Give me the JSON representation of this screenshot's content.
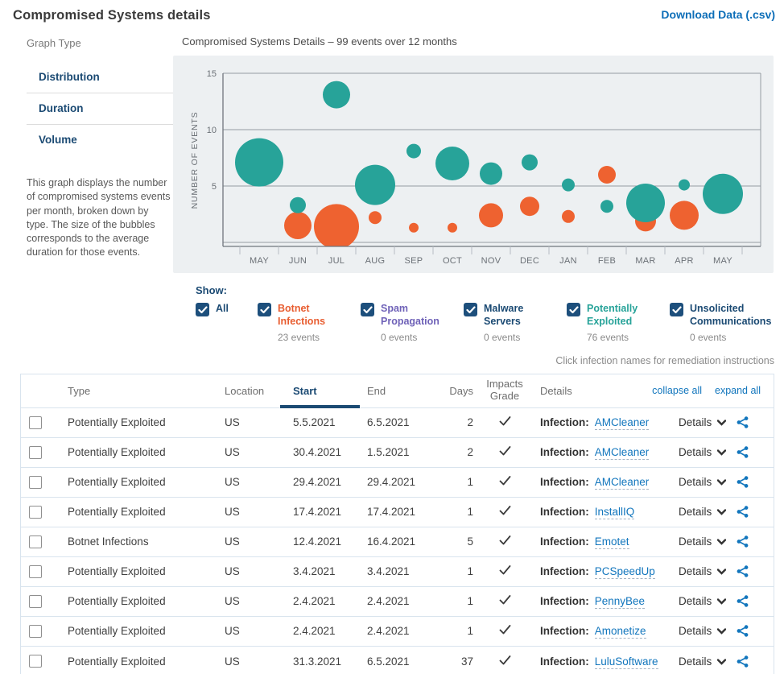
{
  "page": {
    "title": "Compromised Systems details",
    "download_label": "Download Data (.csv)"
  },
  "sidebar": {
    "section_label": "Graph Type",
    "items": [
      "Distribution",
      "Duration",
      "Volume"
    ],
    "description": "This graph displays the number of compromised systems events per month, broken down by type. The size of the bubbles corresponds to the average duration for those events."
  },
  "chart_data": {
    "type": "bubble",
    "title": "Compromised Systems Details – 99 events over 12 months",
    "ylabel": "NUMBER OF EVENTS",
    "ylim": [
      0,
      15
    ],
    "yticks": [
      5,
      10,
      15
    ],
    "grid": true,
    "months": [
      "MAY",
      "JUN",
      "JUL",
      "AUG",
      "SEP",
      "OCT",
      "NOV",
      "DEC",
      "JAN",
      "FEB",
      "MAR",
      "APR",
      "MAY"
    ],
    "series": [
      {
        "name": "Botnet Infections",
        "color": "#ee6230",
        "points": [
          {
            "m": 1,
            "events": 1.5,
            "size": 17
          },
          {
            "m": 2,
            "events": 1.4,
            "size": 28
          },
          {
            "m": 3,
            "events": 2.2,
            "size": 8
          },
          {
            "m": 4,
            "events": 1.3,
            "size": 6
          },
          {
            "m": 5,
            "events": 1.3,
            "size": 6
          },
          {
            "m": 6,
            "events": 2.4,
            "size": 15
          },
          {
            "m": 7,
            "events": 3.2,
            "size": 12
          },
          {
            "m": 8,
            "events": 2.3,
            "size": 8
          },
          {
            "m": 9,
            "events": 6.0,
            "size": 11
          },
          {
            "m": 10,
            "events": 1.9,
            "size": 13
          },
          {
            "m": 11,
            "events": 2.4,
            "size": 18
          }
        ]
      },
      {
        "name": "Potentially Exploited",
        "color": "#27a399",
        "points": [
          {
            "m": 0,
            "events": 7.1,
            "size": 30
          },
          {
            "m": 1,
            "events": 3.3,
            "size": 10
          },
          {
            "m": 2,
            "events": 13.1,
            "size": 17
          },
          {
            "m": 3,
            "events": 5.1,
            "size": 25
          },
          {
            "m": 4,
            "events": 8.1,
            "size": 9
          },
          {
            "m": 5,
            "events": 7.0,
            "size": 21
          },
          {
            "m": 6,
            "events": 6.1,
            "size": 14
          },
          {
            "m": 7,
            "events": 7.1,
            "size": 10
          },
          {
            "m": 8,
            "events": 5.1,
            "size": 8
          },
          {
            "m": 9,
            "events": 3.2,
            "size": 8
          },
          {
            "m": 10,
            "events": 3.5,
            "size": 24
          },
          {
            "m": 11,
            "events": 5.1,
            "size": 7
          },
          {
            "m": 12,
            "events": 4.3,
            "size": 25
          }
        ]
      }
    ]
  },
  "filters": {
    "show_label": "Show:",
    "items": [
      {
        "label": "All",
        "count": null,
        "color": "#1b4a73"
      },
      {
        "label": "Botnet Infections",
        "count": "23 events",
        "color": "#e85d30"
      },
      {
        "label": "Spam Propagation",
        "count": "0 events",
        "color": "#6f62b8"
      },
      {
        "label": "Malware Servers",
        "count": "0 events",
        "color": "#1b4a73"
      },
      {
        "label": "Potentially Exploited",
        "count": "76 events",
        "color": "#27a399"
      },
      {
        "label": "Unsolicited Communications",
        "count": "0 events",
        "color": "#1b4a73"
      }
    ],
    "note": "Click infection names for remediation instructions"
  },
  "table": {
    "columns": [
      "Type",
      "Location",
      "Start",
      "End",
      "Days",
      "Impacts Grade",
      "Details"
    ],
    "sorted_column": "Start",
    "collapse_all_label": "collapse all",
    "expand_all_label": "expand all",
    "infection_prefix": "Infection:",
    "details_toggle_label": "Details",
    "rows": [
      {
        "type": "Potentially Exploited",
        "location": "US",
        "start": "5.5.2021",
        "end": "6.5.2021",
        "days": "2",
        "impacts_grade": true,
        "infection": "AMCleaner"
      },
      {
        "type": "Potentially Exploited",
        "location": "US",
        "start": "30.4.2021",
        "end": "1.5.2021",
        "days": "2",
        "impacts_grade": true,
        "infection": "AMCleaner"
      },
      {
        "type": "Potentially Exploited",
        "location": "US",
        "start": "29.4.2021",
        "end": "29.4.2021",
        "days": "1",
        "impacts_grade": true,
        "infection": "AMCleaner"
      },
      {
        "type": "Potentially Exploited",
        "location": "US",
        "start": "17.4.2021",
        "end": "17.4.2021",
        "days": "1",
        "impacts_grade": true,
        "infection": "InstallIQ"
      },
      {
        "type": "Botnet Infections",
        "location": "US",
        "start": "12.4.2021",
        "end": "16.4.2021",
        "days": "5",
        "impacts_grade": true,
        "infection": "Emotet"
      },
      {
        "type": "Potentially Exploited",
        "location": "US",
        "start": "3.4.2021",
        "end": "3.4.2021",
        "days": "1",
        "impacts_grade": true,
        "infection": "PCSpeedUp"
      },
      {
        "type": "Potentially Exploited",
        "location": "US",
        "start": "2.4.2021",
        "end": "2.4.2021",
        "days": "1",
        "impacts_grade": true,
        "infection": "PennyBee"
      },
      {
        "type": "Potentially Exploited",
        "location": "US",
        "start": "2.4.2021",
        "end": "2.4.2021",
        "days": "1",
        "impacts_grade": true,
        "infection": "Amonetize"
      },
      {
        "type": "Potentially Exploited",
        "location": "US",
        "start": "31.3.2021",
        "end": "6.5.2021",
        "days": "37",
        "impacts_grade": true,
        "infection": "LuluSoftware"
      }
    ]
  }
}
